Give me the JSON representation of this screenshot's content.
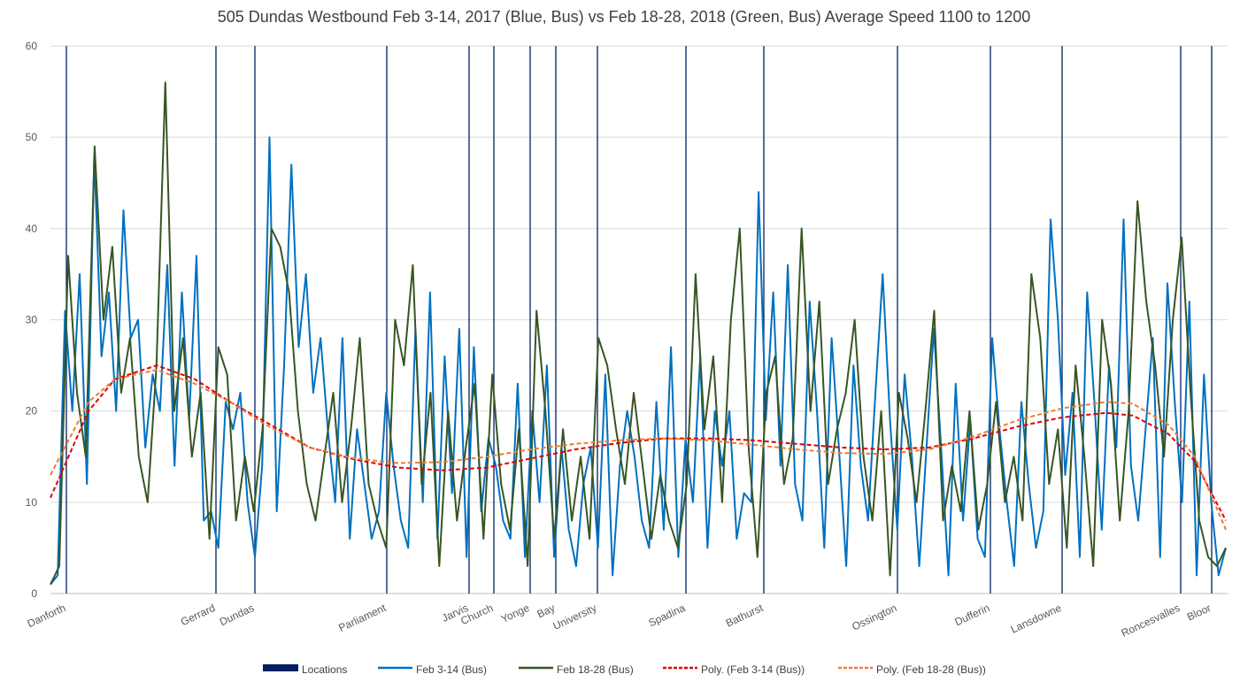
{
  "chart_data": {
    "type": "line",
    "title": "505 Dundas Westbound Feb 3-14, 2017 (Blue, Bus) vs Feb 18-28, 2018 (Green, Bus) Average Speed 1100 to 1200",
    "xlabel": "",
    "ylabel": "",
    "ylim": [
      0,
      60
    ],
    "yticks": [
      0,
      10,
      20,
      30,
      40,
      50,
      60
    ],
    "grid": true,
    "legend_position": "bottom",
    "locations": {
      "name": "Locations",
      "color": "#002060",
      "points": [
        {
          "label": "Danforth",
          "x": 1.8
        },
        {
          "label": "Gerrard",
          "x": 18.7
        },
        {
          "label": "Dundas",
          "x": 23.1
        },
        {
          "label": "Parliament",
          "x": 38.0
        },
        {
          "label": "Jarvis",
          "x": 47.3
        },
        {
          "label": "Church",
          "x": 50.1
        },
        {
          "label": "Yonge",
          "x": 54.2
        },
        {
          "label": "Bay",
          "x": 57.1
        },
        {
          "label": "University",
          "x": 61.8
        },
        {
          "label": "Spadina",
          "x": 71.8
        },
        {
          "label": "Bathurst",
          "x": 80.6
        },
        {
          "label": "Ossington",
          "x": 95.7
        },
        {
          "label": "Dufferin",
          "x": 106.2
        },
        {
          "label": "Lansdowne",
          "x": 114.3
        },
        {
          "label": "Roncesvalles",
          "x": 127.7
        },
        {
          "label": "Bloor",
          "x": 131.2
        }
      ]
    },
    "series": [
      {
        "name": "Feb 3-14 (Bus)",
        "color": "#0070C0",
        "values": [
          1,
          2,
          31,
          20,
          35,
          12,
          48,
          26,
          33,
          20,
          42,
          28,
          30,
          16,
          24,
          20,
          36,
          14,
          33,
          19,
          37,
          8,
          9,
          5,
          21,
          18,
          22,
          10,
          4,
          14,
          50,
          9,
          25,
          47,
          27,
          35,
          22,
          28,
          18,
          10,
          28,
          6,
          18,
          12,
          6,
          9,
          22,
          14,
          8,
          5,
          29,
          10,
          33,
          6,
          26,
          11,
          29,
          4,
          27,
          9,
          17,
          14,
          8,
          6,
          23,
          4,
          20,
          10,
          25,
          4,
          16,
          7,
          3,
          12,
          16,
          5,
          24,
          2,
          14,
          20,
          15,
          8,
          5,
          21,
          7,
          27,
          4,
          17,
          10,
          26,
          5,
          20,
          14,
          20,
          6,
          11,
          10,
          44,
          19,
          33,
          14,
          36,
          12,
          8,
          32,
          20,
          5,
          28,
          16,
          3,
          25,
          14,
          8,
          22,
          35,
          19,
          7,
          24,
          15,
          3,
          16,
          29,
          16,
          2,
          23,
          8,
          19,
          6,
          4,
          28,
          18,
          10,
          3,
          21,
          12,
          5,
          9,
          41,
          30,
          13,
          22,
          4,
          33,
          21,
          7,
          25,
          16,
          41,
          14,
          8,
          18,
          28,
          4,
          34,
          21,
          10,
          32,
          2,
          24,
          10,
          2,
          5
        ]
      },
      {
        "name": "Feb 18-28 (Bus)",
        "color": "#375623",
        "values": [
          1,
          3,
          37,
          22,
          15,
          49,
          30,
          38,
          22,
          28,
          15,
          10,
          25,
          56,
          20,
          28,
          15,
          22,
          6,
          27,
          24,
          8,
          15,
          9,
          18,
          40,
          38,
          33,
          20,
          12,
          8,
          15,
          22,
          10,
          18,
          28,
          12,
          8,
          5,
          30,
          25,
          36,
          12,
          22,
          3,
          20,
          8,
          16,
          23,
          6,
          24,
          12,
          7,
          18,
          3,
          31,
          20,
          6,
          18,
          8,
          15,
          6,
          28,
          25,
          18,
          12,
          22,
          14,
          6,
          13,
          8,
          5,
          12,
          35,
          18,
          26,
          10,
          30,
          40,
          16,
          4,
          22,
          26,
          12,
          17,
          40,
          20,
          32,
          12,
          18,
          22,
          30,
          15,
          8,
          20,
          2,
          22,
          17,
          10,
          20,
          31,
          8,
          14,
          9,
          20,
          7,
          12,
          21,
          10,
          15,
          8,
          35,
          28,
          12,
          18,
          5,
          25,
          15,
          3,
          30,
          23,
          8,
          20,
          43,
          32,
          25,
          15,
          30,
          39,
          22,
          8,
          4,
          3,
          5
        ]
      }
    ],
    "trendlines": [
      {
        "name": "Poly. (Feb 3-14 (Bus))",
        "color": "#E00000",
        "points": [
          [
            0,
            10.5
          ],
          [
            4.3,
            20
          ],
          [
            7.3,
            23.5
          ],
          [
            12,
            25
          ],
          [
            16.3,
            23.5
          ],
          [
            20.3,
            21
          ],
          [
            24.3,
            18.8
          ],
          [
            29.3,
            16
          ],
          [
            34.3,
            14.7
          ],
          [
            39.3,
            13.8
          ],
          [
            44.3,
            13.5
          ],
          [
            49.3,
            13.8
          ],
          [
            54.3,
            14.8
          ],
          [
            59.3,
            15.8
          ],
          [
            64.3,
            16.5
          ],
          [
            69.3,
            17
          ],
          [
            74.3,
            17
          ],
          [
            79.3,
            16.8
          ],
          [
            84.3,
            16.4
          ],
          [
            89.3,
            16
          ],
          [
            94.3,
            15.8
          ],
          [
            99.3,
            16
          ],
          [
            104.3,
            17
          ],
          [
            109.3,
            18.3
          ],
          [
            114.3,
            19.3
          ],
          [
            119.3,
            19.8
          ],
          [
            122.3,
            19.5
          ],
          [
            126.3,
            17.5
          ],
          [
            129.3,
            14.5
          ],
          [
            132.8,
            8
          ]
        ]
      },
      {
        "name": "Poly. (Feb 18-28 (Bus))",
        "color": "#ED7D31",
        "points": [
          [
            0,
            13
          ],
          [
            4.3,
            21
          ],
          [
            7.3,
            23.5
          ],
          [
            12,
            24.5
          ],
          [
            16.3,
            23
          ],
          [
            20.3,
            21
          ],
          [
            24.3,
            18.5
          ],
          [
            29.3,
            16
          ],
          [
            34.3,
            14.8
          ],
          [
            39.3,
            14.3
          ],
          [
            44.3,
            14.4
          ],
          [
            49.3,
            15
          ],
          [
            54.3,
            15.8
          ],
          [
            59.3,
            16.4
          ],
          [
            64.3,
            16.8
          ],
          [
            69.3,
            17
          ],
          [
            74.3,
            16.8
          ],
          [
            79.3,
            16.3
          ],
          [
            84.3,
            15.8
          ],
          [
            89.3,
            15.4
          ],
          [
            94.3,
            15.3
          ],
          [
            99.3,
            15.8
          ],
          [
            104.3,
            17.2
          ],
          [
            109.3,
            19
          ],
          [
            114.3,
            20.3
          ],
          [
            119.3,
            21
          ],
          [
            122.3,
            20.8
          ],
          [
            126.3,
            18.5
          ],
          [
            129.3,
            15
          ],
          [
            132.8,
            7
          ]
        ]
      }
    ]
  }
}
